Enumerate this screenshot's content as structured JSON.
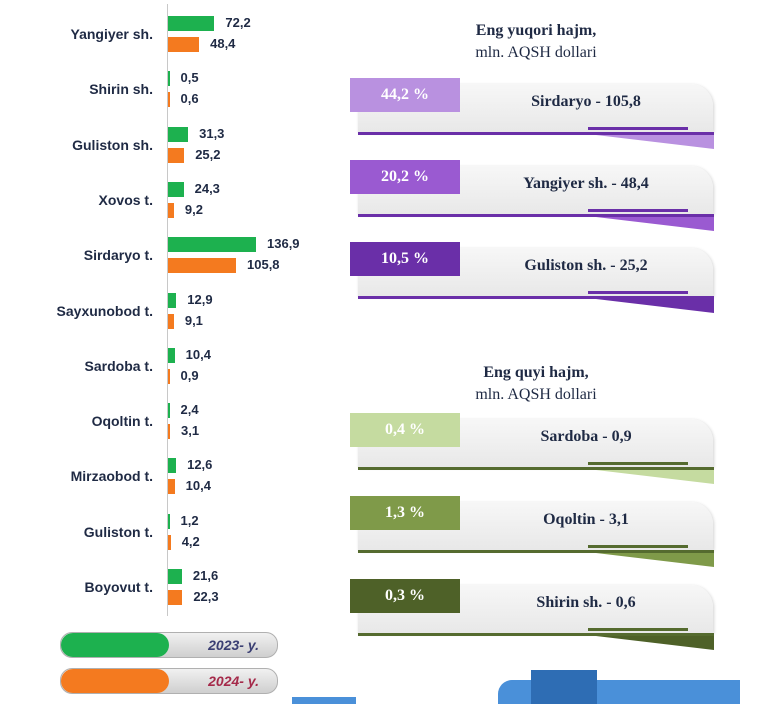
{
  "chart_data": {
    "type": "bar",
    "orientation": "horizontal",
    "categories": [
      "Yangiyer sh.",
      "Shirin sh.",
      "Guliston sh.",
      "Xovos t.",
      "Sirdaryo t.",
      "Sayxunobod t.",
      "Sardoba t.",
      "Oqoltin t.",
      "Mirzaobod t.",
      "Guliston t.",
      "Boyovut t."
    ],
    "series": [
      {
        "name": "2023- y.",
        "color": "#1db14f",
        "values": [
          72.2,
          0.5,
          31.3,
          24.3,
          136.9,
          12.9,
          10.4,
          2.4,
          12.6,
          1.2,
          21.6
        ],
        "labels": [
          "72,2",
          "0,5",
          "31,3",
          "24,3",
          "136,9",
          "12,9",
          "10,4",
          "2,4",
          "12,6",
          "1,2",
          "21,6"
        ]
      },
      {
        "name": "2024- y.",
        "color": "#f47a1f",
        "values": [
          48.4,
          0.6,
          25.2,
          9.2,
          105.8,
          9.1,
          0.9,
          3.1,
          10.4,
          4.2,
          22.3
        ],
        "labels": [
          "48,4",
          "0,6",
          "25,2",
          "9,2",
          "105,8",
          "9,1",
          "0,9",
          "3,1",
          "10,4",
          "4,2",
          "22,3"
        ]
      }
    ],
    "xlim": [
      0,
      140
    ],
    "legend": {
      "position": "bottom-left",
      "items": [
        {
          "label": "2023- y.",
          "color": "#1db14f",
          "text_color": "#3b3f73"
        },
        {
          "label": "2024- y.",
          "color": "#f47a1f",
          "text_color": "#a52a4a"
        }
      ]
    }
  },
  "top_panel": {
    "title_line1": "Eng yuqori hajm,",
    "title_line2": "mln. AQSH dollari",
    "items": [
      {
        "percent": "44,2 %",
        "text": "Sirdaryo - 105,8",
        "tab_color": "#b991e0",
        "line_color": "#6a2fa8"
      },
      {
        "percent": "20,2 %",
        "text": "Yangiyer sh. - 48,4",
        "tab_color": "#9a5ad1",
        "line_color": "#6a2fa8"
      },
      {
        "percent": "10,5 %",
        "text": "Guliston sh.  - 25,2",
        "tab_color": "#6a2fa8",
        "line_color": "#6a2fa8"
      }
    ]
  },
  "bottom_panel": {
    "title_line1": "Eng quyi hajm,",
    "title_line2": "mln. AQSH dollari",
    "items": [
      {
        "percent": "0,4 %",
        "text": "Sardoba -  0,9",
        "tab_color": "#c5dba0",
        "line_color": "#556b2f"
      },
      {
        "percent": "1,3 %",
        "text": "Oqoltin - 3,1",
        "tab_color": "#7f9a49",
        "line_color": "#556b2f"
      },
      {
        "percent": "0,3 %",
        "text": "Shirin sh. - 0,6",
        "tab_color": "#4e6128",
        "line_color": "#556b2f"
      }
    ]
  },
  "decor": {
    "blue": "#4a90d9",
    "dark_blue": "#2e6db4"
  }
}
